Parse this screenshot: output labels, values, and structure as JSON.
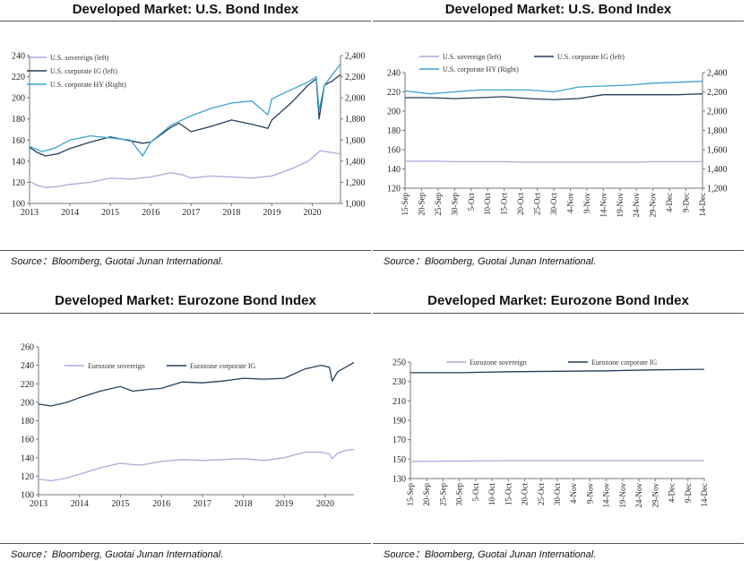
{
  "panels": [
    {
      "title": "Developed Market: U.S. Bond Index",
      "source": "Source：Bloomberg, Guotai Junan International."
    },
    {
      "title": "Developed Market: U.S. Bond Index",
      "source": "Source：Bloomberg, Guotai Junan International."
    },
    {
      "title": "Developed Market: Eurozone Bond Index",
      "source": "Source：Bloomberg, Guotai Junan International."
    },
    {
      "title": "Developed Market: Eurozone Bond Index",
      "source": "Source：Bloomberg, Guotai Junan International."
    }
  ],
  "colors": {
    "sovereign": "#b3a6dc",
    "corporate": "#243f5e",
    "hy": "#3aa2d4"
  },
  "chart_data": [
    {
      "type": "line",
      "x_ticks": [
        "2013",
        "2014",
        "2015",
        "2016",
        "2017",
        "2018",
        "2019",
        "2020"
      ],
      "x_range": [
        2013,
        2020.7
      ],
      "y_left": {
        "min": 100,
        "max": 240,
        "ticks": [
          "100",
          "120",
          "140",
          "160",
          "180",
          "200",
          "220",
          "240"
        ]
      },
      "y_right": {
        "min": 1000,
        "max": 2400,
        "ticks": [
          "1,000",
          "1,200",
          "1,400",
          "1,600",
          "1,800",
          "2,000",
          "2,200",
          "2,400"
        ]
      },
      "legend_position": "top-left",
      "grid": false,
      "series": [
        {
          "name": "U.S. sovereign (left)",
          "color_key": "sovereign",
          "axis": "left",
          "x": [
            2013.0,
            2013.2,
            2013.4,
            2013.7,
            2014.0,
            2014.5,
            2015.0,
            2015.5,
            2016.0,
            2016.5,
            2016.8,
            2017.0,
            2017.5,
            2018.0,
            2018.5,
            2019.0,
            2019.5,
            2019.9,
            2020.2,
            2020.5,
            2020.7
          ],
          "y": [
            121,
            117,
            115,
            116,
            118,
            120,
            124,
            123,
            125,
            129,
            127,
            124,
            126,
            125,
            124,
            126,
            133,
            140,
            150,
            148,
            147
          ]
        },
        {
          "name": "U.S. corporate IG (left)",
          "color_key": "corporate",
          "axis": "left",
          "x": [
            2013.0,
            2013.2,
            2013.4,
            2013.7,
            2014.0,
            2014.5,
            2015.0,
            2015.4,
            2015.8,
            2016.0,
            2016.5,
            2016.7,
            2017.0,
            2017.5,
            2018.0,
            2018.5,
            2018.9,
            2019.0,
            2019.5,
            2019.9,
            2020.1,
            2020.17,
            2020.3,
            2020.5,
            2020.7
          ],
          "y": [
            153,
            148,
            145,
            147,
            152,
            158,
            163,
            160,
            157,
            158,
            172,
            176,
            168,
            173,
            179,
            175,
            171,
            179,
            196,
            212,
            218,
            180,
            212,
            216,
            222
          ]
        },
        {
          "name": "U.S. corporate HY (Right)",
          "color_key": "hy",
          "axis": "right",
          "x": [
            2013.0,
            2013.3,
            2013.6,
            2014.0,
            2014.5,
            2015.0,
            2015.5,
            2015.8,
            2016.0,
            2016.5,
            2017.0,
            2017.5,
            2018.0,
            2018.5,
            2018.9,
            2019.0,
            2019.5,
            2019.9,
            2020.1,
            2020.17,
            2020.3,
            2020.5,
            2020.7
          ],
          "y": [
            1540,
            1490,
            1520,
            1600,
            1640,
            1620,
            1600,
            1450,
            1580,
            1740,
            1830,
            1900,
            1950,
            1970,
            1840,
            1990,
            2080,
            2150,
            2200,
            1880,
            2120,
            2220,
            2320
          ]
        }
      ]
    },
    {
      "type": "line",
      "x_ticks": [
        "15-Sep",
        "20-Sep",
        "25-Sep",
        "30-Sep",
        "5-Oct",
        "10-Oct",
        "15-Oct",
        "20-Oct",
        "25-Oct",
        "30-Oct",
        "4-Nov",
        "9-Nov",
        "14-Nov",
        "19-Nov",
        "24-Nov",
        "29-Nov",
        "4-Dec",
        "9-Dec",
        "14-Dec"
      ],
      "y_left": {
        "min": 120,
        "max": 240,
        "ticks": [
          "120",
          "140",
          "160",
          "180",
          "200",
          "220",
          "240"
        ]
      },
      "y_right": {
        "min": 1200,
        "max": 2400,
        "ticks": [
          "1,200",
          "1,400",
          "1,600",
          "1,800",
          "2,000",
          "2,200",
          "2,400"
        ]
      },
      "legend_position": "top",
      "grid": false,
      "series": [
        {
          "name": "U.S. sovereign (left)",
          "color_key": "sovereign",
          "axis": "left",
          "x": [
            0,
            2,
            4,
            6,
            8,
            10,
            12,
            14,
            16,
            18,
            20,
            22,
            24,
            26,
            28,
            30,
            32,
            34,
            36
          ],
          "y": [
            148,
            148,
            148,
            147.5,
            147.5,
            147.5,
            147.5,
            147,
            147,
            147,
            147,
            147,
            147,
            147,
            147,
            147.5,
            147.5,
            147.5,
            147.5
          ]
        },
        {
          "name": "U.S. corporate IG (left)",
          "color_key": "corporate",
          "axis": "left",
          "x": [
            0,
            3,
            6,
            9,
            12,
            15,
            18,
            21,
            24,
            27,
            30,
            33,
            36
          ],
          "y": [
            214,
            214,
            213,
            214,
            215,
            213,
            212,
            213,
            217,
            217,
            217,
            217,
            218
          ]
        },
        {
          "name": "U.S. corporate HY (Right)",
          "color_key": "hy",
          "axis": "right",
          "x": [
            0,
            3,
            6,
            9,
            12,
            15,
            18,
            21,
            24,
            27,
            30,
            33,
            36
          ],
          "y": [
            2210,
            2180,
            2200,
            2220,
            2220,
            2220,
            2200,
            2250,
            2260,
            2270,
            2290,
            2300,
            2310
          ]
        }
      ]
    },
    {
      "type": "line",
      "x_ticks": [
        "2013",
        "2014",
        "2015",
        "2016",
        "2017",
        "2018",
        "2019",
        "2020"
      ],
      "x_range": [
        2013,
        2020.7
      ],
      "y_left": {
        "min": 100,
        "max": 260,
        "ticks": [
          "100",
          "120",
          "140",
          "160",
          "180",
          "200",
          "220",
          "240",
          "260"
        ]
      },
      "legend_position": "top",
      "grid": false,
      "series": [
        {
          "name": "Eurozone sovereign",
          "color_key": "sovereign",
          "axis": "left",
          "x": [
            2013.0,
            2013.3,
            2013.7,
            2014.0,
            2014.5,
            2015.0,
            2015.2,
            2015.5,
            2016.0,
            2016.5,
            2017.0,
            2017.5,
            2018.0,
            2018.5,
            2019.0,
            2019.5,
            2019.9,
            2020.1,
            2020.17,
            2020.3,
            2020.5,
            2020.7
          ],
          "y": [
            117,
            115,
            118,
            122,
            129,
            134,
            133,
            132,
            136,
            138,
            137,
            138,
            139,
            137,
            140,
            146,
            146,
            144,
            139,
            145,
            148,
            149
          ]
        },
        {
          "name": "Eurozone corporate IG",
          "color_key": "corporate",
          "axis": "left",
          "x": [
            2013.0,
            2013.3,
            2013.7,
            2014.0,
            2014.5,
            2015.0,
            2015.3,
            2015.7,
            2016.0,
            2016.5,
            2017.0,
            2017.5,
            2018.0,
            2018.5,
            2019.0,
            2019.5,
            2019.9,
            2020.1,
            2020.17,
            2020.3,
            2020.5,
            2020.7
          ],
          "y": [
            198,
            196,
            200,
            205,
            212,
            217,
            212,
            214,
            215,
            222,
            221,
            223,
            226,
            225,
            226,
            236,
            240,
            238,
            223,
            233,
            238,
            243
          ]
        }
      ]
    },
    {
      "type": "line",
      "x_ticks": [
        "15-Sep",
        "20-Sep",
        "25-Sep",
        "30-Sep",
        "5-Oct",
        "10-Oct",
        "15-Oct",
        "20-Oct",
        "25-Oct",
        "30-Oct",
        "4-Nov",
        "9-Nov",
        "14-Nov",
        "19-Nov",
        "24-Nov",
        "29-Nov",
        "4-Dec",
        "9-Dec",
        "14-Dec"
      ],
      "y_left": {
        "min": 130,
        "max": 250,
        "ticks": [
          "130",
          "150",
          "170",
          "190",
          "210",
          "230",
          "250"
        ]
      },
      "legend_position": "top",
      "grid": false,
      "series": [
        {
          "name": "Eurozone sovereign",
          "color_key": "sovereign",
          "axis": "left",
          "x": [
            0,
            6,
            12,
            18,
            24,
            30,
            36
          ],
          "y": [
            147.5,
            148,
            148.5,
            148.5,
            148.5,
            148.5,
            148.5
          ]
        },
        {
          "name": "Eurozone corporate IG",
          "color_key": "corporate",
          "axis": "left",
          "x": [
            0,
            6,
            12,
            18,
            24,
            30,
            36
          ],
          "y": [
            239,
            239,
            240,
            240.5,
            241,
            242,
            242.5
          ]
        }
      ]
    }
  ]
}
